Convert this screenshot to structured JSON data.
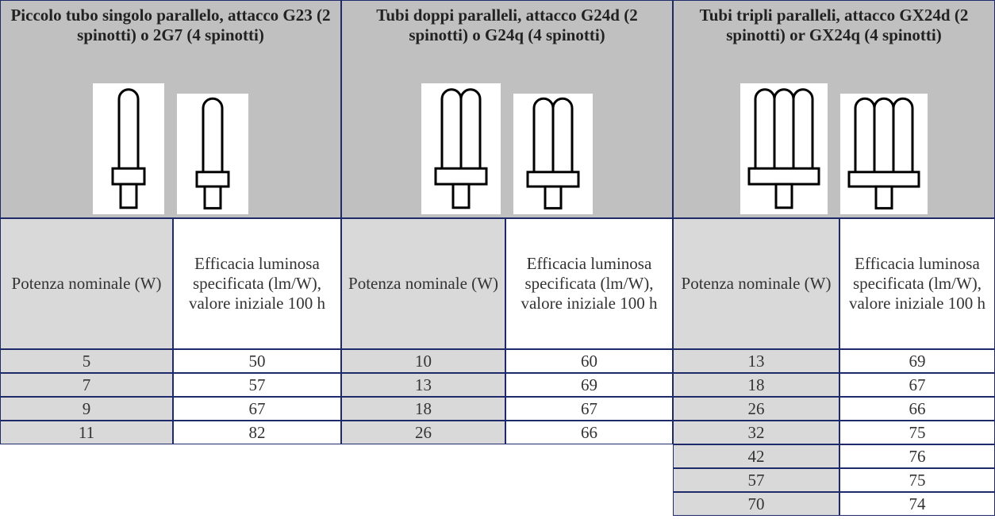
{
  "groups": [
    {
      "title": "Piccolo tubo singolo parallelo, attacco G23 (2 spinotti) o 2G7 (4 spinotti)",
      "headers": [
        "Potenza nominale (W)",
        "Efficacia luminosa specificata (lm/W), valore iniziale 100 h"
      ],
      "rows": [
        [
          5,
          50
        ],
        [
          7,
          57
        ],
        [
          9,
          67
        ],
        [
          11,
          82
        ]
      ]
    },
    {
      "title": "Tubi doppi paralleli, attacco G24d (2 spinotti) o G24q (4 spinotti)",
      "headers": [
        "Potenza nominale (W)",
        "Efficacia luminosa specificata (lm/W), valore iniziale 100 h"
      ],
      "rows": [
        [
          10,
          60
        ],
        [
          13,
          69
        ],
        [
          18,
          67
        ],
        [
          26,
          66
        ]
      ]
    },
    {
      "title": "Tubi tripli paralleli, attacco GX24d (2 spinotti) or GX24q (4 spinotti)",
      "headers": [
        "Potenza nominale (W)",
        "Efficacia luminosa specificata (lm/W), valore iniziale 100 h"
      ],
      "rows": [
        [
          13,
          69
        ],
        [
          18,
          67
        ],
        [
          26,
          66
        ],
        [
          32,
          75
        ],
        [
          42,
          76
        ],
        [
          57,
          75
        ],
        [
          70,
          74
        ]
      ]
    }
  ]
}
